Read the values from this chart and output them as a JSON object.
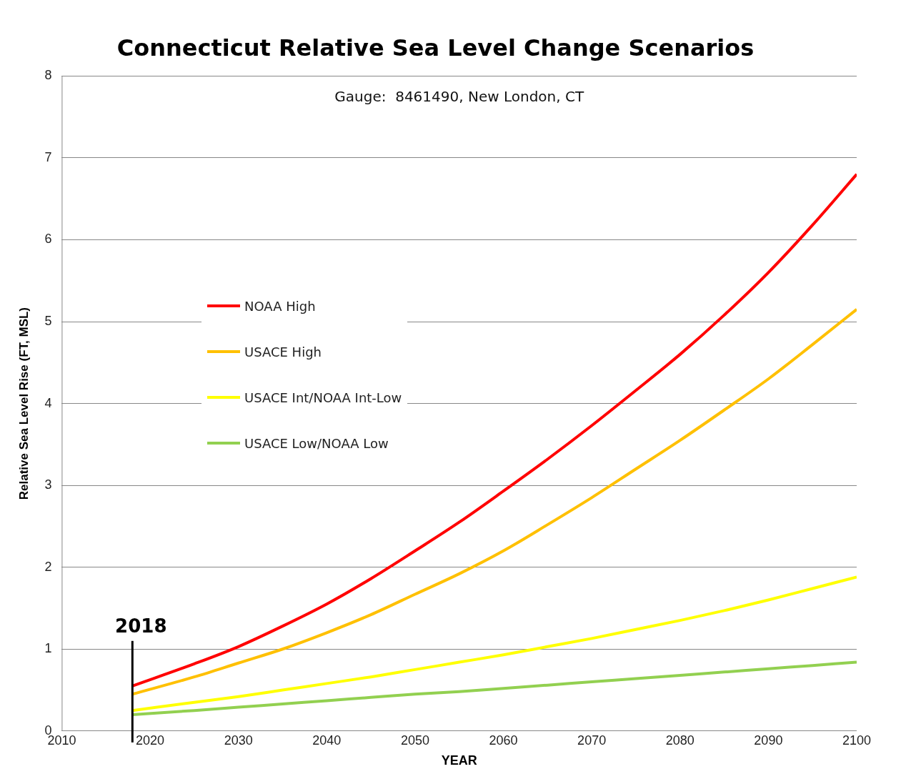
{
  "chart_data": {
    "type": "line",
    "title": "Connecticut Relative Sea Level Change Scenarios",
    "xlabel": "YEAR",
    "ylabel": "Relative Sea Level Rise (FT, MSL)",
    "annotations": [
      "Gauge:  8461490, New London, CT"
    ],
    "x": [
      2018,
      2025,
      2030,
      2035,
      2040,
      2045,
      2050,
      2055,
      2060,
      2065,
      2070,
      2075,
      2080,
      2085,
      2090,
      2095,
      2100
    ],
    "series": [
      {
        "name": "NOAA High",
        "color": "#ff0000",
        "values": [
          0.55,
          0.82,
          1.03,
          1.28,
          1.55,
          1.86,
          2.2,
          2.55,
          2.93,
          3.32,
          3.73,
          4.16,
          4.6,
          5.08,
          5.6,
          6.18,
          6.8
        ]
      },
      {
        "name": "USACE High",
        "color": "#ffc000",
        "values": [
          0.45,
          0.66,
          0.83,
          1.0,
          1.2,
          1.42,
          1.67,
          1.92,
          2.2,
          2.52,
          2.85,
          3.2,
          3.55,
          3.92,
          4.3,
          4.72,
          5.15
        ]
      },
      {
        "name": "USACE Int/NOAA Int-Low",
        "color": "#ffff00",
        "values": [
          0.25,
          0.35,
          0.42,
          0.5,
          0.58,
          0.66,
          0.75,
          0.84,
          0.93,
          1.03,
          1.13,
          1.24,
          1.35,
          1.47,
          1.6,
          1.74,
          1.88
        ]
      },
      {
        "name": "USACE Low/NOAA Low",
        "color": "#92d050",
        "values": [
          0.2,
          0.25,
          0.29,
          0.33,
          0.37,
          0.41,
          0.45,
          0.48,
          0.52,
          0.56,
          0.6,
          0.64,
          0.68,
          0.72,
          0.76,
          0.8,
          0.84
        ]
      }
    ],
    "xlim": [
      2010,
      2100
    ],
    "xticks": [
      2010,
      2020,
      2030,
      2040,
      2050,
      2060,
      2070,
      2080,
      2090,
      2100
    ],
    "ylim": [
      0,
      8
    ],
    "yticks": [
      0,
      1,
      2,
      3,
      4,
      5,
      6,
      7,
      8
    ],
    "ref_lines": [
      {
        "axis": "x",
        "value": 2018,
        "label": "2018",
        "color": "#000000"
      }
    ],
    "grid": "y",
    "legend": "left",
    "marker": "none",
    "line_style": "solid"
  }
}
